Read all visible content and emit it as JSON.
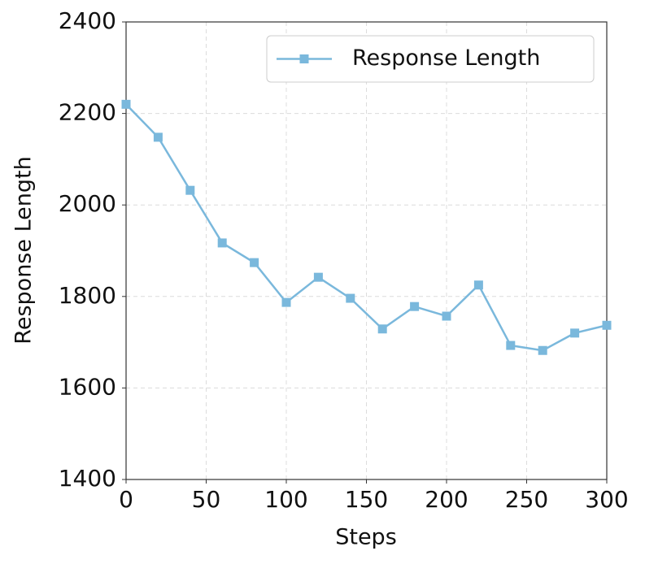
{
  "chart_data": {
    "type": "line",
    "x": [
      0,
      20,
      40,
      60,
      80,
      100,
      120,
      140,
      160,
      180,
      200,
      220,
      240,
      260,
      280,
      300
    ],
    "series": [
      {
        "name": "Response Length",
        "color": "#7ab8dc",
        "values": [
          2220,
          2148,
          2032,
          1917,
          1874,
          1787,
          1842,
          1796,
          1729,
          1778,
          1757,
          1825,
          1693,
          1682,
          1720,
          1737
        ]
      }
    ],
    "xlabel": "Steps",
    "ylabel": "Response Length",
    "xlim": [
      0,
      300
    ],
    "xticks": [
      0,
      50,
      100,
      150,
      200,
      250,
      300
    ],
    "ylim": [
      1400,
      2400
    ],
    "yticks": [
      1400,
      1600,
      1800,
      2000,
      2200,
      2400
    ],
    "grid": true,
    "legend": "upper right"
  }
}
